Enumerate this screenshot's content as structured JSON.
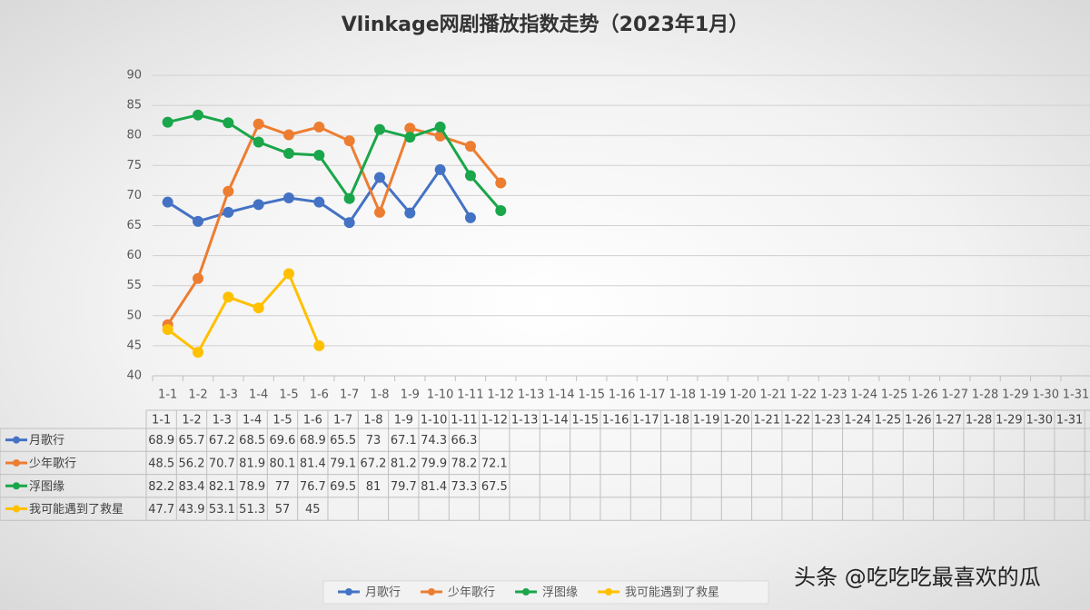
{
  "chart_data": {
    "type": "line",
    "title": "Vlinkage网剧播放指数走势（2023年1月）",
    "categories": [
      "1-1",
      "1-2",
      "1-3",
      "1-4",
      "1-5",
      "1-6",
      "1-7",
      "1-8",
      "1-9",
      "1-10",
      "1-11",
      "1-12",
      "1-13",
      "1-14",
      "1-15",
      "1-16",
      "1-17",
      "1-18",
      "1-19",
      "1-20",
      "1-21",
      "1-22",
      "1-23",
      "1-24",
      "1-25",
      "1-26",
      "1-27",
      "1-28",
      "1-29",
      "1-30",
      "1-31"
    ],
    "series": [
      {
        "name": "月歌行",
        "color": "#4472c4",
        "values": [
          68.9,
          65.7,
          67.2,
          68.5,
          69.6,
          68.9,
          65.5,
          73,
          67.1,
          74.3,
          66.3,
          null,
          null,
          null,
          null,
          null,
          null,
          null,
          null,
          null,
          null,
          null,
          null,
          null,
          null,
          null,
          null,
          null,
          null,
          null,
          null
        ]
      },
      {
        "name": "少年歌行",
        "color": "#ed7d31",
        "values": [
          48.5,
          56.2,
          70.7,
          81.9,
          80.1,
          81.4,
          79.1,
          67.2,
          81.2,
          79.9,
          78.2,
          72.1,
          null,
          null,
          null,
          null,
          null,
          null,
          null,
          null,
          null,
          null,
          null,
          null,
          null,
          null,
          null,
          null,
          null,
          null,
          null
        ]
      },
      {
        "name": "浮图缘",
        "color": "#1aa64a",
        "values": [
          82.2,
          83.4,
          82.1,
          78.9,
          77,
          76.7,
          69.5,
          81,
          79.7,
          81.4,
          73.3,
          67.5,
          null,
          null,
          null,
          null,
          null,
          null,
          null,
          null,
          null,
          null,
          null,
          null,
          null,
          null,
          null,
          null,
          null,
          null,
          null
        ]
      },
      {
        "name": "我可能遇到了救星",
        "color": "#ffc000",
        "values": [
          47.7,
          43.9,
          53.1,
          51.3,
          57,
          45,
          null,
          null,
          null,
          null,
          null,
          null,
          null,
          null,
          null,
          null,
          null,
          null,
          null,
          null,
          null,
          null,
          null,
          null,
          null,
          null,
          null,
          null,
          null,
          null,
          null
        ]
      }
    ],
    "ylim": [
      40,
      90
    ],
    "yticks": [
      40,
      45,
      50,
      55,
      60,
      65,
      70,
      75,
      80,
      85,
      90
    ],
    "grid": true,
    "legend": "bottom",
    "watermark": "头条 @吃吃吃最喜欢的瓜"
  }
}
